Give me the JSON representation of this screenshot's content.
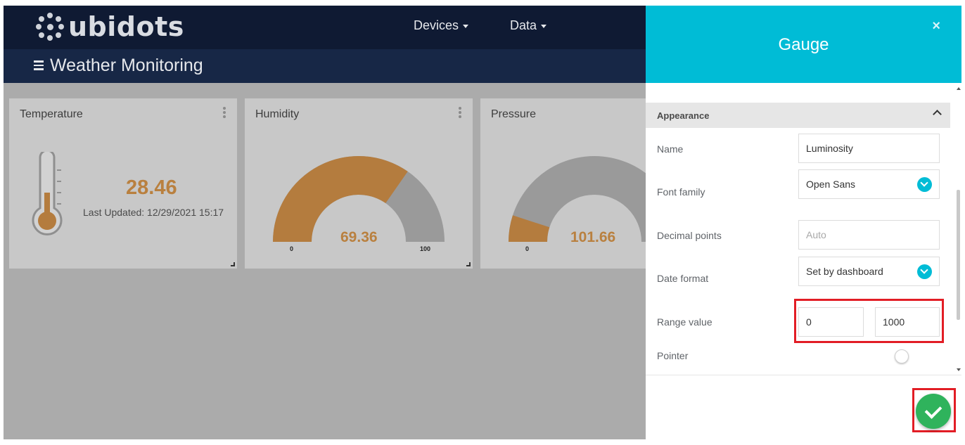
{
  "header": {
    "logo_text": "ubidots",
    "nav": [
      {
        "label": "Devices"
      },
      {
        "label": "Data"
      }
    ],
    "dashboard_title": "Weather Monitoring"
  },
  "widgets": {
    "temperature": {
      "title": "Temperature",
      "value": "28.46",
      "last_updated": "Last Updated: 12/29/2021 15:17",
      "thermometer_fill": 0.45
    },
    "humidity": {
      "title": "Humidity",
      "value": "69.36",
      "min": "0",
      "max": "100",
      "fill_fraction": 0.6936
    },
    "pressure": {
      "title": "Pressure",
      "value": "101.66",
      "min": "0",
      "fill_fraction": 0.1
    }
  },
  "panel": {
    "title": "Gauge",
    "close_glyph": "×",
    "section": {
      "title": "Appearance"
    },
    "fields": {
      "name": {
        "label": "Name",
        "value": "Luminosity"
      },
      "font_family": {
        "label": "Font family",
        "value": "Open Sans"
      },
      "decimal_points": {
        "label": "Decimal points",
        "placeholder": "Auto"
      },
      "date_format": {
        "label": "Date format",
        "value": "Set by dashboard"
      },
      "range_value": {
        "label": "Range value",
        "min": "0",
        "max": "1000"
      },
      "pointer": {
        "label": "Pointer",
        "enabled": false
      }
    }
  },
  "colors": {
    "nav_bg": "#0f1a33",
    "subnav_bg": "#172746",
    "panel_header": "#00bcd6",
    "value_orange": "#b9803f",
    "gauge_fill": "#b47c3e",
    "gauge_track": "#9a9a9a",
    "save_green": "#2fb35c",
    "highlight_red": "#e21d25"
  },
  "icons": {
    "menu": "hamburger-icon",
    "widget_menu": "kebab-icon",
    "close": "close-icon",
    "collapse": "chevron-up-icon",
    "dropdown": "chevron-down-icon",
    "save": "check-icon",
    "thermometer": "thermometer-icon"
  }
}
